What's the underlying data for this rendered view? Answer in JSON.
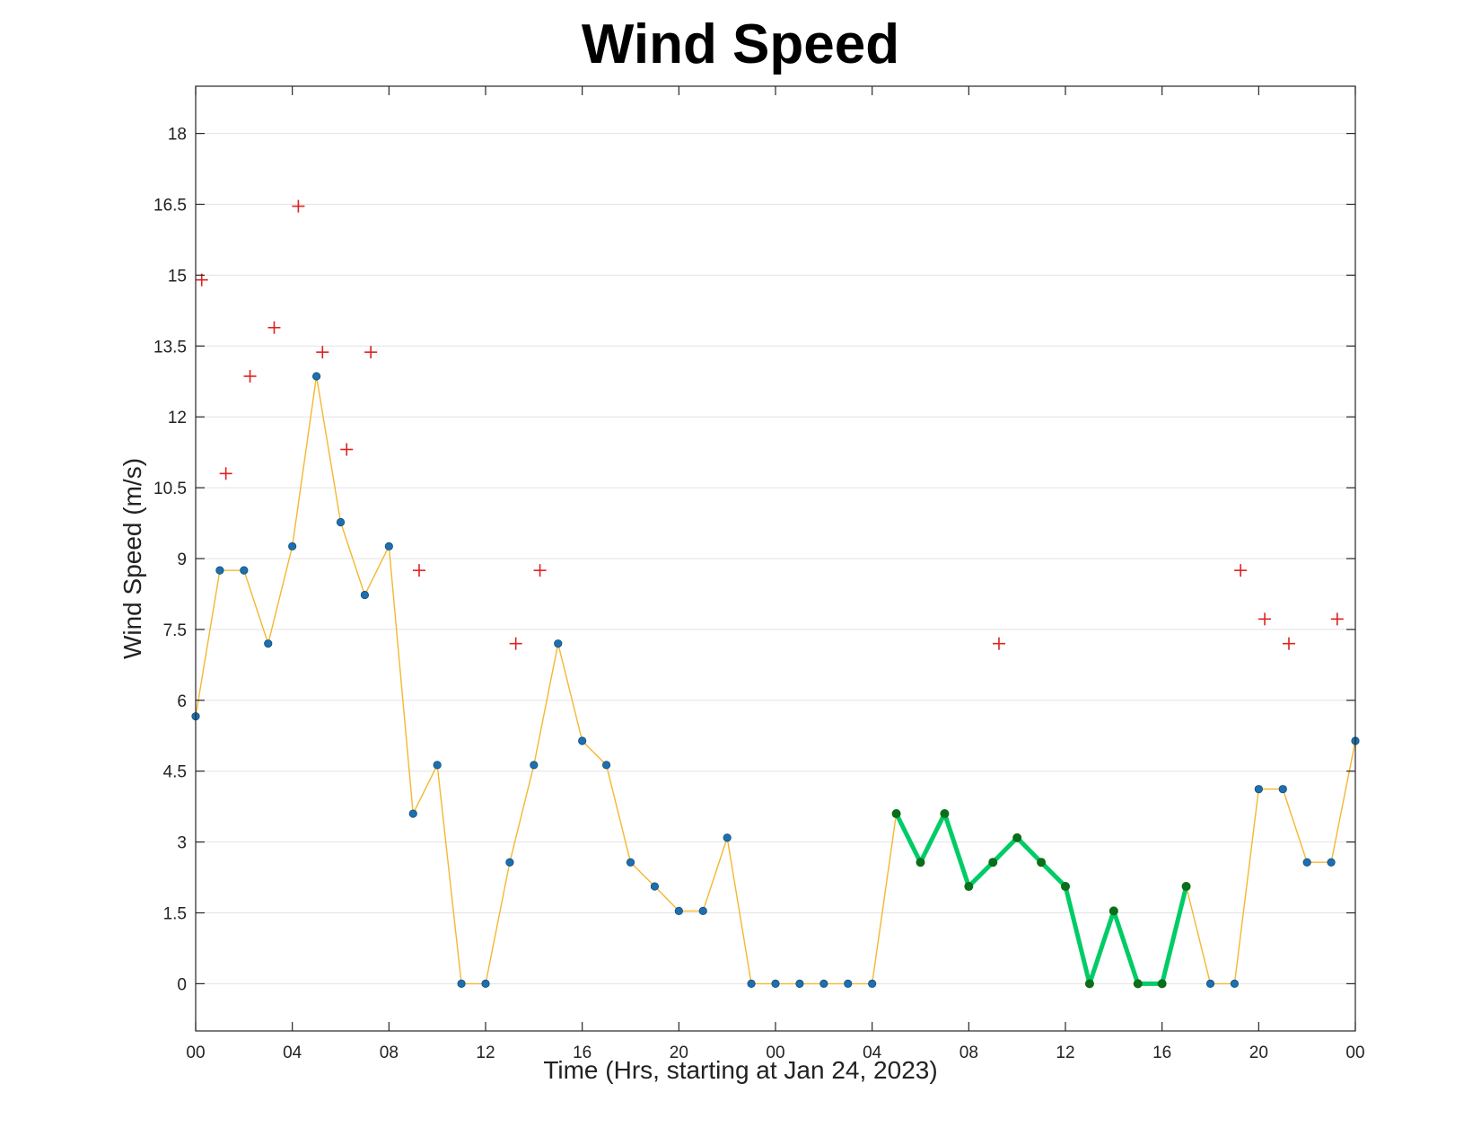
{
  "chart_data": {
    "type": "line",
    "title": "Wind Speed",
    "xlabel": "Time (Hrs, starting at Jan 24, 2023)",
    "ylabel": "Wind Speed (m/s)",
    "x_unit": "hours",
    "xlim": [
      0,
      48
    ],
    "ylim": [
      -1,
      19
    ],
    "yticks": [
      "0",
      "1.5",
      "3",
      "4.5",
      "6",
      "7.5",
      "9",
      "10.5",
      "12",
      "13.5",
      "15",
      "16.5",
      "18"
    ],
    "ytick_values": [
      0,
      1.5,
      3,
      4.5,
      6,
      7.5,
      9,
      10.5,
      12,
      13.5,
      15,
      16.5,
      18
    ],
    "xticks": [
      "00",
      "04",
      "08",
      "12",
      "16",
      "20",
      "00",
      "04",
      "08",
      "12",
      "16",
      "20",
      "00"
    ],
    "xtick_values": [
      0,
      4,
      8,
      12,
      16,
      20,
      24,
      28,
      32,
      36,
      40,
      44,
      48
    ],
    "grid": "horizontal",
    "series": [
      {
        "style": "line-with-markers",
        "line_color": "#f5b730",
        "marker_color": "#1f6fae",
        "x": [
          0,
          1,
          2,
          3,
          4,
          5,
          6,
          7,
          8,
          9,
          10,
          11,
          12,
          13,
          14,
          15,
          16,
          17,
          18,
          19,
          20,
          21,
          22,
          23,
          24,
          25,
          26,
          27,
          28,
          29,
          30,
          31,
          32,
          33,
          34,
          35,
          36,
          37,
          38,
          39,
          40,
          41,
          42,
          43,
          44,
          45,
          46,
          47,
          48
        ],
        "values": [
          5.66,
          8.75,
          8.75,
          7.2,
          9.26,
          12.86,
          9.77,
          8.23,
          9.26,
          3.6,
          4.63,
          0,
          0,
          2.57,
          4.63,
          7.2,
          5.14,
          4.63,
          2.57,
          2.06,
          1.54,
          1.54,
          3.09,
          0,
          0,
          0,
          0,
          0,
          0,
          3.6,
          2.57,
          3.6,
          2.06,
          2.57,
          3.09,
          2.57,
          2.06,
          0,
          1.54,
          0,
          0,
          2.06,
          0,
          0,
          4.12,
          4.12,
          2.57,
          2.57,
          5.14
        ]
      },
      {
        "style": "thick-highlight",
        "line_color": "#00cc66",
        "marker_color": "#0a6e1a",
        "x": [
          29,
          30,
          31,
          32,
          33,
          34,
          35,
          36,
          37,
          38,
          39,
          40,
          41
        ],
        "values": [
          3.6,
          2.57,
          3.6,
          2.06,
          2.57,
          3.09,
          2.57,
          2.06,
          0,
          1.54,
          0,
          0,
          2.06
        ]
      },
      {
        "style": "plus-markers",
        "marker_color": "#e02020",
        "x": [
          0.25,
          1.25,
          2.25,
          3.25,
          4.25,
          5.25,
          6.25,
          7.25,
          9.25,
          13.25,
          14.25,
          33.25,
          43.25,
          44.25,
          45.25,
          47.25
        ],
        "values": [
          14.9,
          10.8,
          12.86,
          13.89,
          16.46,
          13.37,
          11.31,
          13.37,
          8.75,
          7.2,
          8.75,
          7.2,
          8.75,
          7.72,
          7.2,
          7.72
        ]
      }
    ]
  }
}
